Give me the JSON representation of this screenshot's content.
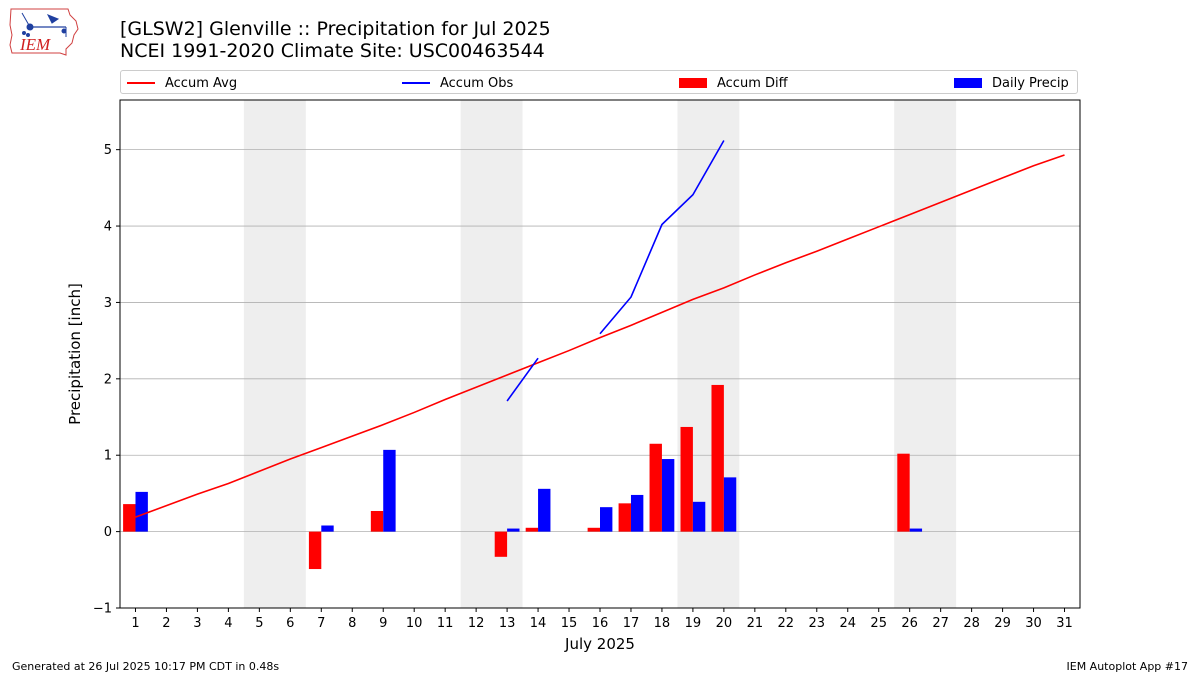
{
  "header": {
    "title_line1": "[GLSW2] Glenville :: Precipitation for Jul 2025",
    "title_line2": "NCEI 1991-2020 Climate Site: USC00463544",
    "logo_text": "IEM"
  },
  "footer": {
    "left": "Generated at 26 Jul 2025 10:17 PM CDT in 0.48s",
    "right": "IEM Autoplot App #17"
  },
  "colors": {
    "accum_avg": "#ff0000",
    "accum_obs": "#0000ff",
    "accum_diff": "#ff0000",
    "daily_precip": "#0000ff",
    "weekend_band": "#eeeeee",
    "grid": "#b0b0b0"
  },
  "legend": {
    "accum_avg": "Accum Avg",
    "accum_obs": "Accum Obs",
    "accum_diff": "Accum Diff",
    "daily_precip": "Daily Precip",
    "placement": "top, outside plot"
  },
  "chart_data": {
    "type": "bar",
    "xlabel": "July 2025",
    "ylabel": "Precipitation [inch]",
    "xlim": [
      0.5,
      31.5
    ],
    "ylim": [
      -1,
      5.65
    ],
    "yticks": [
      -1,
      0,
      1,
      2,
      3,
      4,
      5
    ],
    "ytick_labels": [
      "−1",
      "0",
      "1",
      "2",
      "3",
      "4",
      "5"
    ],
    "categories": [
      "1",
      "2",
      "3",
      "4",
      "5",
      "6",
      "7",
      "8",
      "9",
      "10",
      "11",
      "12",
      "13",
      "14",
      "15",
      "16",
      "17",
      "18",
      "19",
      "20",
      "21",
      "22",
      "23",
      "24",
      "25",
      "26",
      "27",
      "28",
      "29",
      "30",
      "31"
    ],
    "grid": "horizontal",
    "weekend_bands": [
      [
        4.5,
        6.5
      ],
      [
        11.5,
        13.5
      ],
      [
        18.5,
        20.5
      ],
      [
        25.5,
        27.5
      ]
    ],
    "series": [
      {
        "name": "Accum Avg",
        "kind": "line",
        "x": [
          1,
          2,
          3,
          4,
          5,
          6,
          7,
          8,
          9,
          10,
          11,
          12,
          13,
          14,
          15,
          16,
          17,
          18,
          19,
          20,
          21,
          22,
          23,
          24,
          25,
          26,
          27,
          28,
          29,
          30,
          31
        ],
        "values": [
          0.19,
          0.34,
          0.49,
          0.63,
          0.79,
          0.95,
          1.1,
          1.25,
          1.4,
          1.56,
          1.73,
          1.89,
          2.05,
          2.21,
          2.37,
          2.54,
          2.7,
          2.87,
          3.04,
          3.19,
          3.36,
          3.52,
          3.67,
          3.83,
          3.99,
          4.15,
          4.31,
          4.47,
          4.63,
          4.79,
          4.93
        ]
      },
      {
        "name": "Accum Obs",
        "kind": "line",
        "segments": [
          {
            "x": [
              13,
              14
            ],
            "values": [
              1.71,
              2.27
            ]
          },
          {
            "x": [
              16,
              17,
              18,
              19,
              20
            ],
            "values": [
              2.59,
              3.07,
              4.02,
              4.41,
              5.12
            ]
          }
        ]
      },
      {
        "name": "Accum Diff",
        "kind": "bar",
        "x": [
          1,
          7,
          9,
          13,
          14,
          16,
          17,
          18,
          19,
          20,
          26
        ],
        "values": [
          0.36,
          -0.49,
          0.27,
          -0.33,
          0.05,
          0.05,
          0.37,
          1.15,
          1.37,
          1.92,
          1.02
        ]
      },
      {
        "name": "Daily Precip",
        "kind": "bar",
        "x": [
          1,
          7,
          9,
          13,
          14,
          16,
          17,
          18,
          19,
          20,
          26
        ],
        "values": [
          0.52,
          0.08,
          1.07,
          0.04,
          0.56,
          0.32,
          0.48,
          0.95,
          0.39,
          0.71,
          0.04
        ]
      }
    ]
  }
}
